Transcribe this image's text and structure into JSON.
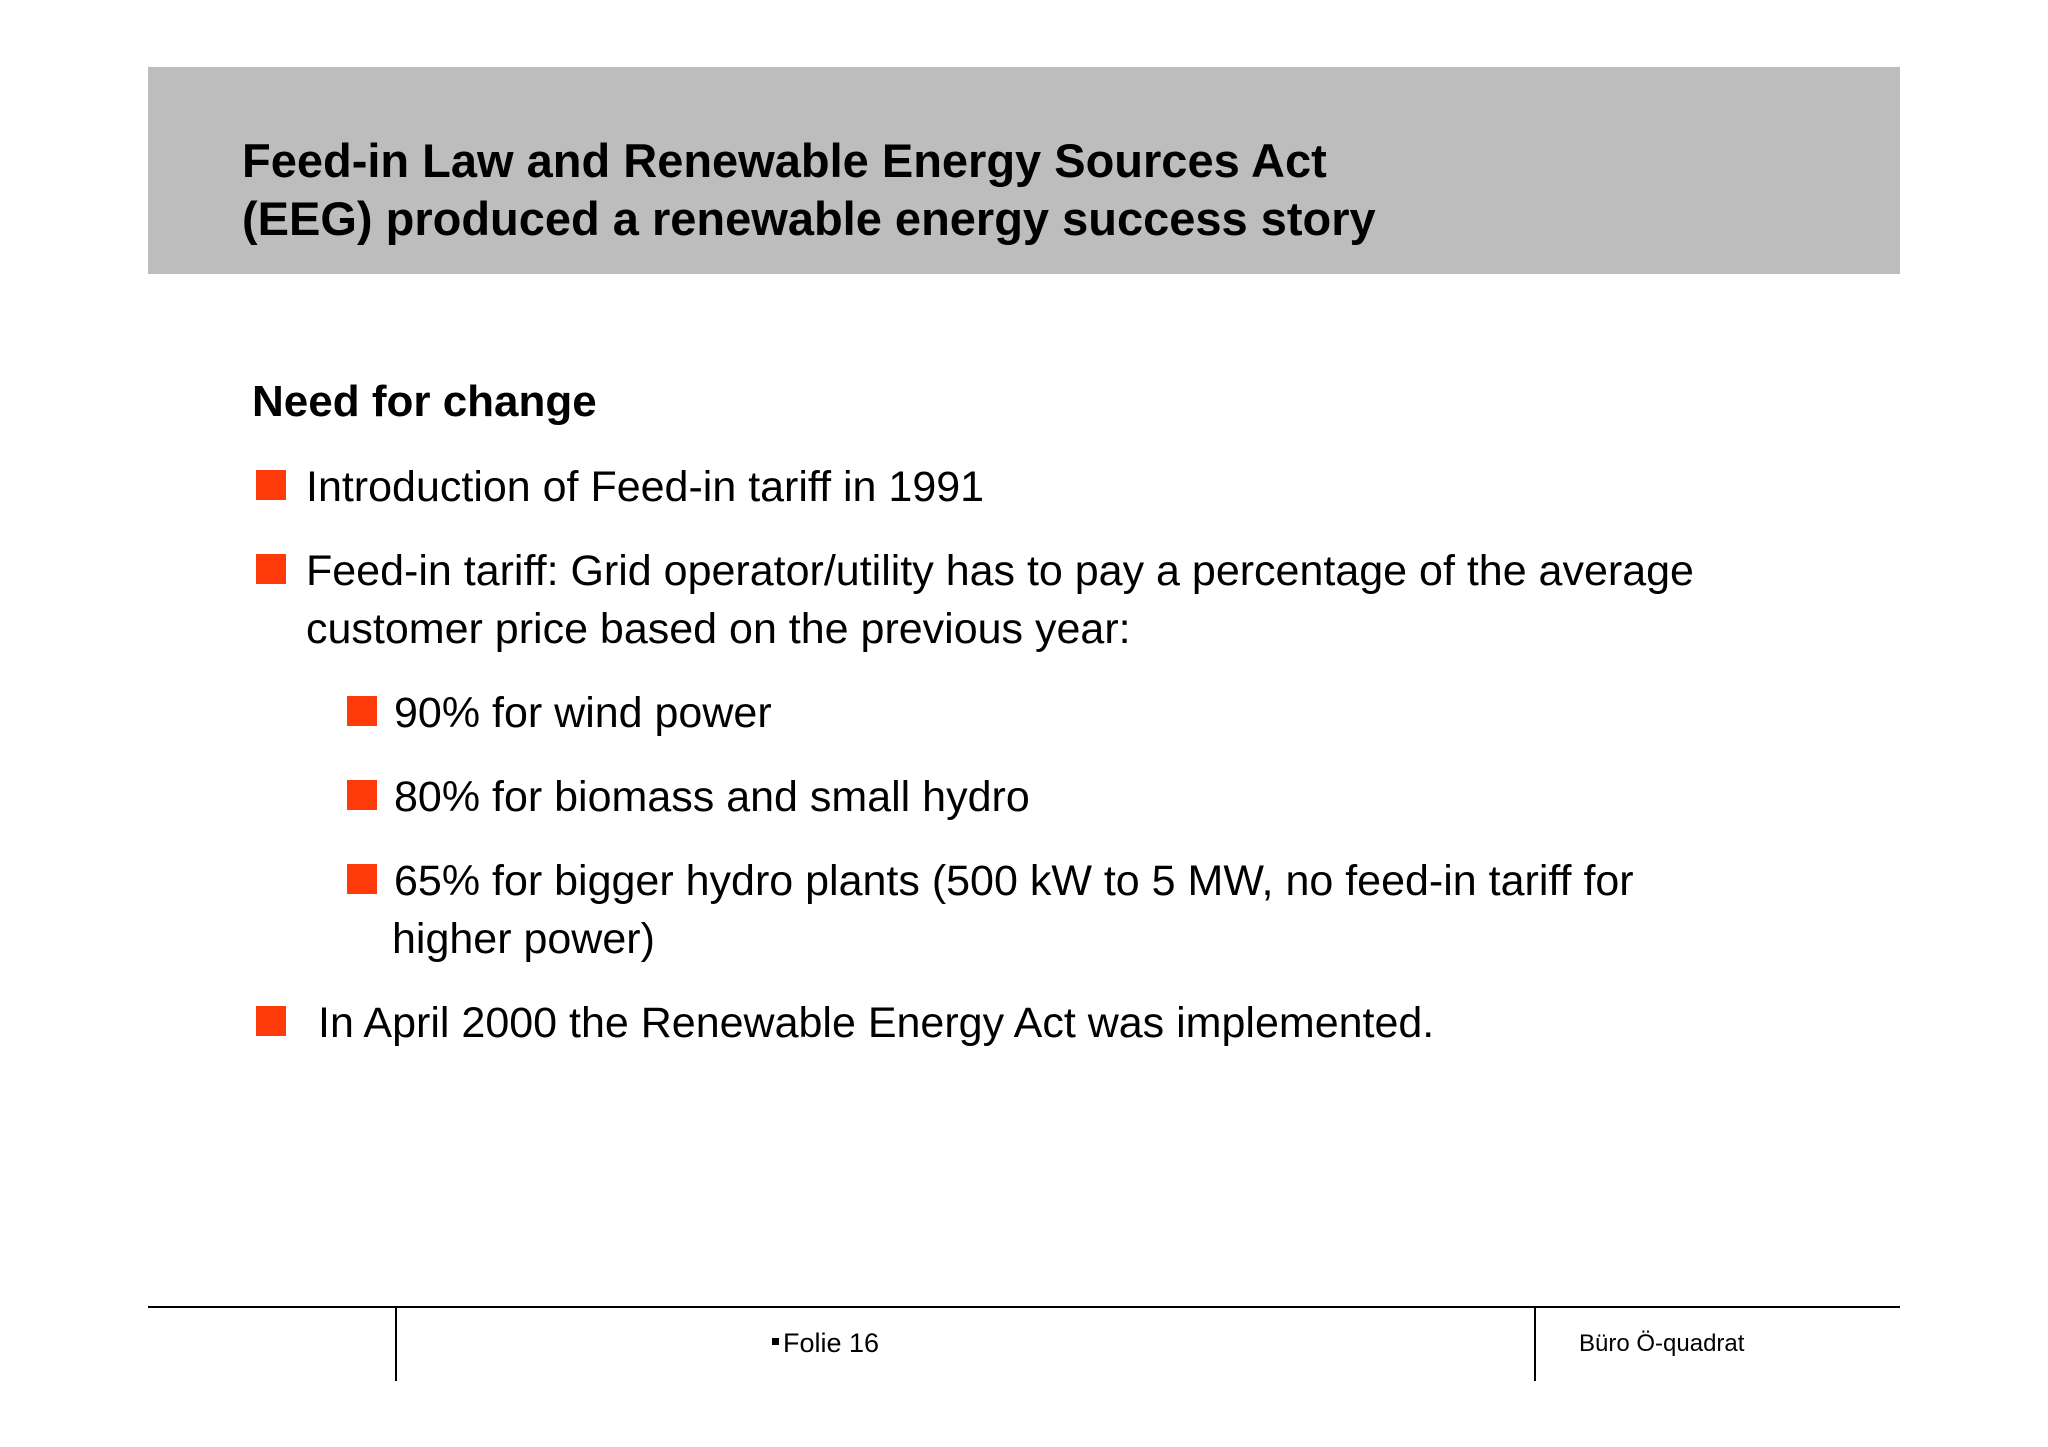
{
  "slide": {
    "title_line1": "Feed-in Law and Renewable Energy Sources Act",
    "title_line2": "(EEG) produced a renewable energy success story",
    "section_heading": "Need for change",
    "bullets": {
      "b1": "Introduction of Feed-in tariff in 1991",
      "b2_line1": "Feed-in tariff: Grid operator/utility has to pay a percentage of the average",
      "b2_line2": "customer price based on the previous year:",
      "sub1": "90% for wind power",
      "sub2": "80% for biomass and small hydro",
      "sub3_line1": "65% for bigger hydro plants (500 kW to 5 MW, no feed-in tariff for",
      "sub3_line2": "higher power)",
      "b3": "In April 2000 the Renewable Energy Act was implemented."
    },
    "bullet_color": "#ff3a0a",
    "title_band_color": "#bdbdbd"
  },
  "footer": {
    "slide_number": "Folie 16",
    "brand": "Büro Ö-quadrat"
  }
}
